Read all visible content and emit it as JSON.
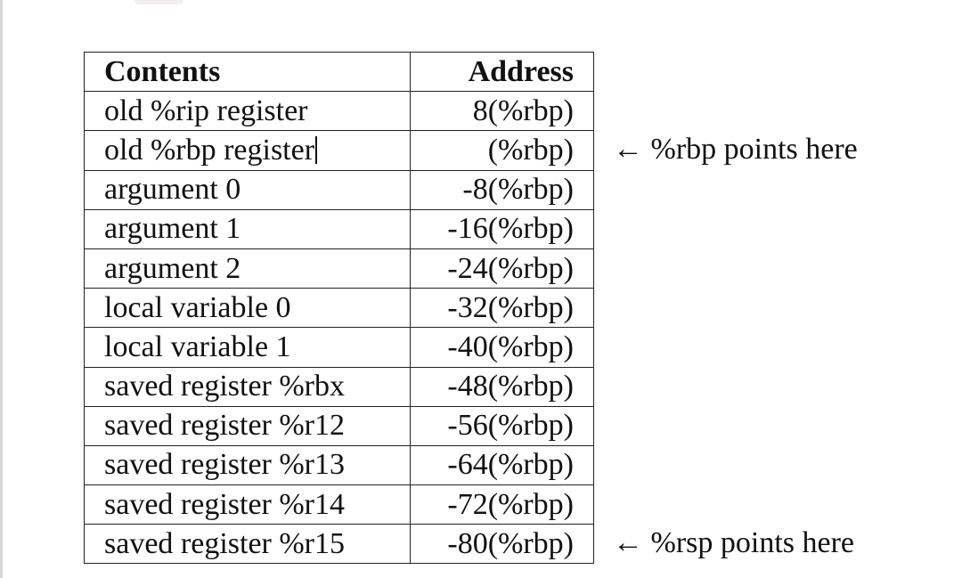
{
  "table": {
    "headers": {
      "contents": "Contents",
      "address": "Address"
    },
    "rows": [
      {
        "contents": "old %rip register",
        "address": "8(%rbp)"
      },
      {
        "contents": "old %rbp register",
        "address": "(%rbp)"
      },
      {
        "contents": "argument 0",
        "address": "-8(%rbp)"
      },
      {
        "contents": "argument 1",
        "address": "-16(%rbp)"
      },
      {
        "contents": "argument 2",
        "address": "-24(%rbp)"
      },
      {
        "contents": "local variable 0",
        "address": "-32(%rbp)"
      },
      {
        "contents": "local variable 1",
        "address": "-40(%rbp)"
      },
      {
        "contents": "saved register %rbx",
        "address": "-48(%rbp)"
      },
      {
        "contents": "saved register %r12",
        "address": "-56(%rbp)"
      },
      {
        "contents": "saved register %r13",
        "address": "-64(%rbp)"
      },
      {
        "contents": "saved register %r14",
        "address": "-72(%rbp)"
      },
      {
        "contents": "saved register %r15",
        "address": "-80(%rbp)"
      }
    ]
  },
  "annotations": {
    "rbp_pointer": "← %rbp points here",
    "rsp_pointer": "← %rsp points here"
  }
}
